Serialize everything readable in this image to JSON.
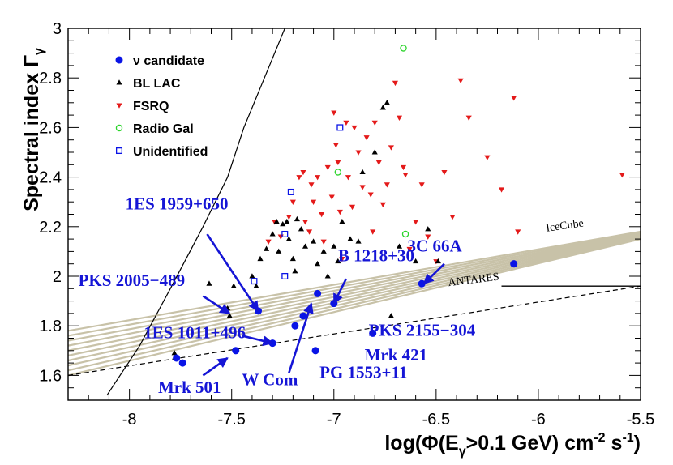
{
  "chart_data": {
    "type": "scatter",
    "title": "",
    "xlabel_main": "log(Φ(E",
    "xlabel_sub1": "γ",
    "xlabel_mid": ">0.1 GeV) cm",
    "xlabel_sup1": "-2",
    "xlabel_mid2": " s",
    "xlabel_sup2": "-1",
    "xlabel_end": ")",
    "ylabel_main": "Spectral index Γ",
    "ylabel_sub": "γ",
    "xlim": [
      -8.3,
      -5.5
    ],
    "ylim": [
      1.5,
      3.0
    ],
    "x_ticks": [
      {
        "v": -8,
        "label": "-8"
      },
      {
        "v": -7.5,
        "label": "-7.5"
      },
      {
        "v": -7,
        "label": "-7"
      },
      {
        "v": -6.5,
        "label": "-6.5"
      },
      {
        "v": -6,
        "label": "-6"
      },
      {
        "v": -5.5,
        "label": "-5.5"
      }
    ],
    "y_ticks": [
      {
        "v": 1.6,
        "label": "1.6"
      },
      {
        "v": 1.8,
        "label": "1.8"
      },
      {
        "v": 2.0,
        "label": "2"
      },
      {
        "v": 2.2,
        "label": "2.2"
      },
      {
        "v": 2.4,
        "label": "2.4"
      },
      {
        "v": 2.6,
        "label": "2.6"
      },
      {
        "v": 2.8,
        "label": "2.8"
      },
      {
        "v": 3.0,
        "label": "3"
      }
    ],
    "legend_position": "top-left",
    "legend": [
      {
        "label": "ν candidate",
        "marker": "circle-filled",
        "color": "#0a14e6"
      },
      {
        "label": "BL LAC",
        "marker": "triangle-up",
        "color": "#000000"
      },
      {
        "label": "FSRQ",
        "marker": "triangle-down",
        "color": "#e41a1a"
      },
      {
        "label": "Radio Gal",
        "marker": "circle-open",
        "color": "#2bd42b"
      },
      {
        "label": "Unidentified",
        "marker": "square-open",
        "color": "#0a14e6"
      }
    ],
    "series": [
      {
        "name": "ν candidate",
        "marker": "circle-filled",
        "color": "#0a14e6",
        "points": [
          [
            -7.77,
            1.67
          ],
          [
            -7.74,
            1.65
          ],
          [
            -7.48,
            1.7
          ],
          [
            -7.37,
            1.86
          ],
          [
            -7.3,
            1.73
          ],
          [
            -7.19,
            1.8
          ],
          [
            -7.15,
            1.84
          ],
          [
            -7.09,
            1.7
          ],
          [
            -7.08,
            1.93
          ],
          [
            -7.0,
            1.89
          ],
          [
            -6.81,
            1.77
          ],
          [
            -6.57,
            1.97
          ],
          [
            -6.12,
            2.05
          ]
        ]
      },
      {
        "name": "BL LAC",
        "marker": "triangle-up",
        "color": "#000000",
        "points": [
          [
            -7.78,
            1.69
          ],
          [
            -7.61,
            1.97
          ],
          [
            -7.52,
            1.87
          ],
          [
            -7.51,
            1.84
          ],
          [
            -7.49,
            1.96
          ],
          [
            -7.4,
            2.0
          ],
          [
            -7.38,
            1.96
          ],
          [
            -7.36,
            2.07
          ],
          [
            -7.33,
            2.11
          ],
          [
            -7.3,
            2.17
          ],
          [
            -7.28,
            2.22
          ],
          [
            -7.27,
            2.1
          ],
          [
            -7.25,
            2.21
          ],
          [
            -7.23,
            2.22
          ],
          [
            -7.22,
            2.15
          ],
          [
            -7.2,
            2.07
          ],
          [
            -7.19,
            2.02
          ],
          [
            -7.18,
            2.23
          ],
          [
            -7.16,
            2.19
          ],
          [
            -7.14,
            2.12
          ],
          [
            -7.1,
            2.14
          ],
          [
            -7.08,
            2.05
          ],
          [
            -7.05,
            2.1
          ],
          [
            -7.03,
            2.0
          ],
          [
            -7.0,
            2.12
          ],
          [
            -6.98,
            2.06
          ],
          [
            -6.96,
            2.22
          ],
          [
            -6.92,
            2.15
          ],
          [
            -6.88,
            2.14
          ],
          [
            -6.86,
            2.42
          ],
          [
            -6.8,
            2.5
          ],
          [
            -6.76,
            2.68
          ],
          [
            -6.74,
            2.7
          ],
          [
            -6.72,
            1.84
          ],
          [
            -6.68,
            2.12
          ],
          [
            -6.6,
            2.06
          ],
          [
            -6.54,
            2.19
          ],
          [
            -6.49,
            2.06
          ]
        ]
      },
      {
        "name": "FSRQ",
        "marker": "triangle-down",
        "color": "#e41a1a",
        "points": [
          [
            -7.32,
            2.14
          ],
          [
            -7.29,
            2.22
          ],
          [
            -7.26,
            2.16
          ],
          [
            -7.22,
            2.24
          ],
          [
            -7.2,
            2.3
          ],
          [
            -7.17,
            2.4
          ],
          [
            -7.15,
            2.42
          ],
          [
            -7.14,
            2.22
          ],
          [
            -7.12,
            2.18
          ],
          [
            -7.11,
            2.37
          ],
          [
            -7.1,
            2.3
          ],
          [
            -7.08,
            2.4
          ],
          [
            -7.06,
            2.25
          ],
          [
            -7.05,
            2.14
          ],
          [
            -7.03,
            2.44
          ],
          [
            -7.01,
            2.32
          ],
          [
            -7.0,
            2.66
          ],
          [
            -6.99,
            2.53
          ],
          [
            -6.98,
            2.46
          ],
          [
            -6.97,
            2.26
          ],
          [
            -6.96,
            2.07
          ],
          [
            -6.94,
            2.62
          ],
          [
            -6.93,
            2.4
          ],
          [
            -6.91,
            2.28
          ],
          [
            -6.9,
            2.6
          ],
          [
            -6.88,
            2.5
          ],
          [
            -6.86,
            2.36
          ],
          [
            -6.84,
            2.56
          ],
          [
            -6.82,
            2.33
          ],
          [
            -6.81,
            2.18
          ],
          [
            -6.8,
            2.62
          ],
          [
            -6.78,
            2.46
          ],
          [
            -6.76,
            2.29
          ],
          [
            -6.74,
            2.37
          ],
          [
            -6.72,
            2.52
          ],
          [
            -6.7,
            2.78
          ],
          [
            -6.68,
            2.64
          ],
          [
            -6.66,
            2.44
          ],
          [
            -6.65,
            2.41
          ],
          [
            -6.63,
            2.11
          ],
          [
            -6.6,
            2.22
          ],
          [
            -6.57,
            2.37
          ],
          [
            -6.54,
            2.16
          ],
          [
            -6.5,
            2.06
          ],
          [
            -6.46,
            2.42
          ],
          [
            -6.42,
            2.24
          ],
          [
            -6.38,
            2.79
          ],
          [
            -6.34,
            2.64
          ],
          [
            -6.25,
            2.48
          ],
          [
            -6.18,
            2.35
          ],
          [
            -6.12,
            2.72
          ],
          [
            -6.1,
            2.18
          ],
          [
            -5.59,
            2.41
          ]
        ]
      },
      {
        "name": "Radio Gal",
        "marker": "circle-open",
        "color": "#2bd42b",
        "points": [
          [
            -6.66,
            2.92
          ],
          [
            -6.98,
            2.42
          ],
          [
            -6.65,
            2.17
          ]
        ]
      },
      {
        "name": "Unidentified",
        "marker": "square-open",
        "color": "#0a14e6",
        "points": [
          [
            -6.97,
            2.6
          ],
          [
            -7.21,
            2.34
          ],
          [
            -7.24,
            2.17
          ],
          [
            -7.24,
            2.0
          ],
          [
            -7.39,
            1.98
          ]
        ]
      }
    ],
    "source_labels": [
      {
        "text": "1ES 1959+650",
        "lx": -8.02,
        "ly": 2.27,
        "ax": -7.37,
        "ay": 1.86
      },
      {
        "text": "PKS 2005−489",
        "lx": -8.25,
        "ly": 1.96,
        "ax": -7.51,
        "ay": 1.85
      },
      {
        "text": "1ES 1011+496",
        "lx": -7.93,
        "ly": 1.75,
        "ax": -7.3,
        "ay": 1.73
      },
      {
        "text": "Mrk 501",
        "lx": -7.86,
        "ly": 1.53,
        "ax": -7.52,
        "ay": 1.67
      },
      {
        "text": "W Com",
        "lx": -7.45,
        "ly": 1.56,
        "ax": -7.11,
        "ay": 1.89
      },
      {
        "text": "B 1218+30",
        "lx": -6.98,
        "ly": 2.06,
        "ax": -7.0,
        "ay": 1.89
      },
      {
        "text": "PG 1553+11",
        "lx": -7.07,
        "ly": 1.59,
        "ax": null,
        "ay": null
      },
      {
        "text": "3C 66A",
        "lx": -6.64,
        "ly": 2.1,
        "ax": -6.56,
        "ay": 1.97
      },
      {
        "text": "PKS 2155−304",
        "lx": -6.83,
        "ly": 1.76,
        "ax": null,
        "ay": null
      },
      {
        "text": "Mrk 421",
        "lx": -6.85,
        "ly": 1.66,
        "ax": null,
        "ay": null
      }
    ],
    "curves": [
      {
        "name": "black-solid-curve",
        "style": "solid",
        "points": [
          [
            -8.11,
            1.52
          ],
          [
            -7.95,
            1.72
          ],
          [
            -7.8,
            1.95
          ],
          [
            -7.64,
            2.2
          ],
          [
            -7.52,
            2.4
          ],
          [
            -7.44,
            2.6
          ],
          [
            -7.34,
            2.8
          ],
          [
            -7.24,
            3.0
          ]
        ]
      },
      {
        "name": "ANTARES",
        "style": "dashed",
        "label": "ANTARES",
        "label_x": -6.44,
        "label_y": 1.96,
        "points": [
          [
            -8.3,
            1.6
          ],
          [
            -5.5,
            1.96
          ]
        ]
      },
      {
        "name": "IceCube",
        "style": "band",
        "label": "IceCube",
        "label_x": -5.96,
        "label_y": 2.18,
        "band_low": [
          [
            -8.3,
            1.6
          ],
          [
            -5.5,
            2.15
          ]
        ],
        "band_high": [
          [
            -8.3,
            1.78
          ],
          [
            -5.5,
            2.18
          ]
        ],
        "lines": 10
      },
      {
        "name": "ANTARES-pointer",
        "style": "solid",
        "points": [
          [
            -6.18,
            1.96
          ],
          [
            -5.5,
            1.96
          ]
        ]
      }
    ]
  }
}
